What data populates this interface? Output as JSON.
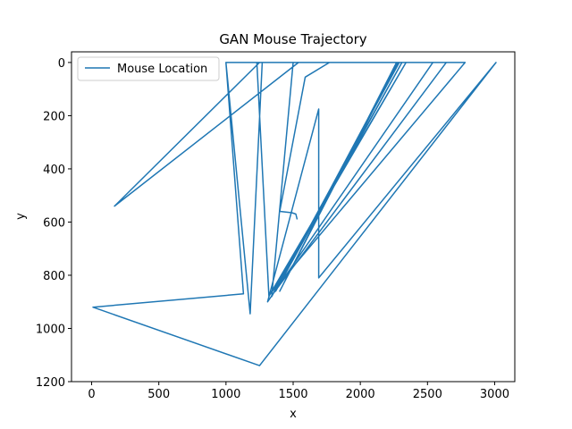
{
  "chart_data": {
    "type": "line",
    "title": "GAN Mouse Trajectory",
    "xlabel": "x",
    "ylabel": "y",
    "xlim": [
      -150,
      3150
    ],
    "ylim": [
      1200,
      -40
    ],
    "y_inverted": true,
    "xticks": [
      0,
      500,
      1000,
      1500,
      2000,
      2500,
      3000
    ],
    "yticks": [
      0,
      200,
      400,
      600,
      800,
      1000,
      1200
    ],
    "grid": false,
    "legend_position": "upper-left",
    "line_color": "#1f77b4",
    "series": [
      {
        "name": "Mouse Location",
        "x": [
          1530,
          1520,
          1490,
          1400,
          1590,
          1770,
          1600,
          1000,
          2540,
          1310,
          1690,
          1690,
          3010,
          1250,
          10,
          1130,
          1000,
          1180,
          1270,
          1220,
          1280,
          1230,
          1320,
          1340,
          1360,
          2340,
          1330,
          2780,
          1680,
          1580,
          1250,
          170,
          1540,
          1690,
          2270,
          1400,
          2280,
          1370,
          2310,
          1350,
          2640,
          1600,
          2290,
          1340,
          1500,
          1440
        ],
        "y": [
          590,
          570,
          565,
          560,
          55,
          0,
          0,
          0,
          0,
          900,
          175,
          810,
          0,
          1140,
          920,
          870,
          0,
          945,
          0,
          0,
          0,
          0,
          880,
          860,
          850,
          0,
          870,
          0,
          0,
          0,
          0,
          540,
          0,
          0,
          0,
          860,
          0,
          860,
          0,
          870,
          0,
          0,
          0,
          880,
          0,
          0
        ]
      }
    ]
  }
}
